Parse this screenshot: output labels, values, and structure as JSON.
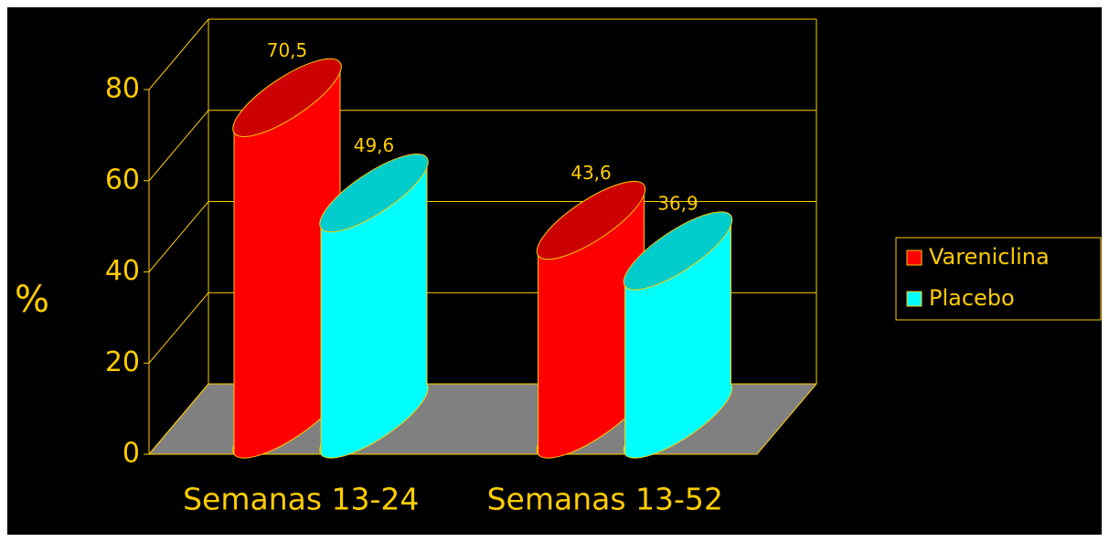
{
  "chart_data": {
    "type": "bar3d",
    "y_label": "%",
    "categories": [
      "Semanas 13-24",
      "Semanas 13-52"
    ],
    "series": [
      {
        "name": "Vareniclina",
        "color": "#ff0000",
        "values": [
          70.5,
          43.6
        ],
        "value_labels": [
          "70,5",
          "43,6"
        ]
      },
      {
        "name": "Placebo",
        "color": "#00ffff",
        "values": [
          49.6,
          36.9
        ],
        "value_labels": [
          "49,6",
          "36,9"
        ]
      }
    ],
    "ylim": [
      0,
      80
    ],
    "yticks": [
      0,
      20,
      40,
      60,
      80
    ],
    "grid": true,
    "legend": "right"
  }
}
